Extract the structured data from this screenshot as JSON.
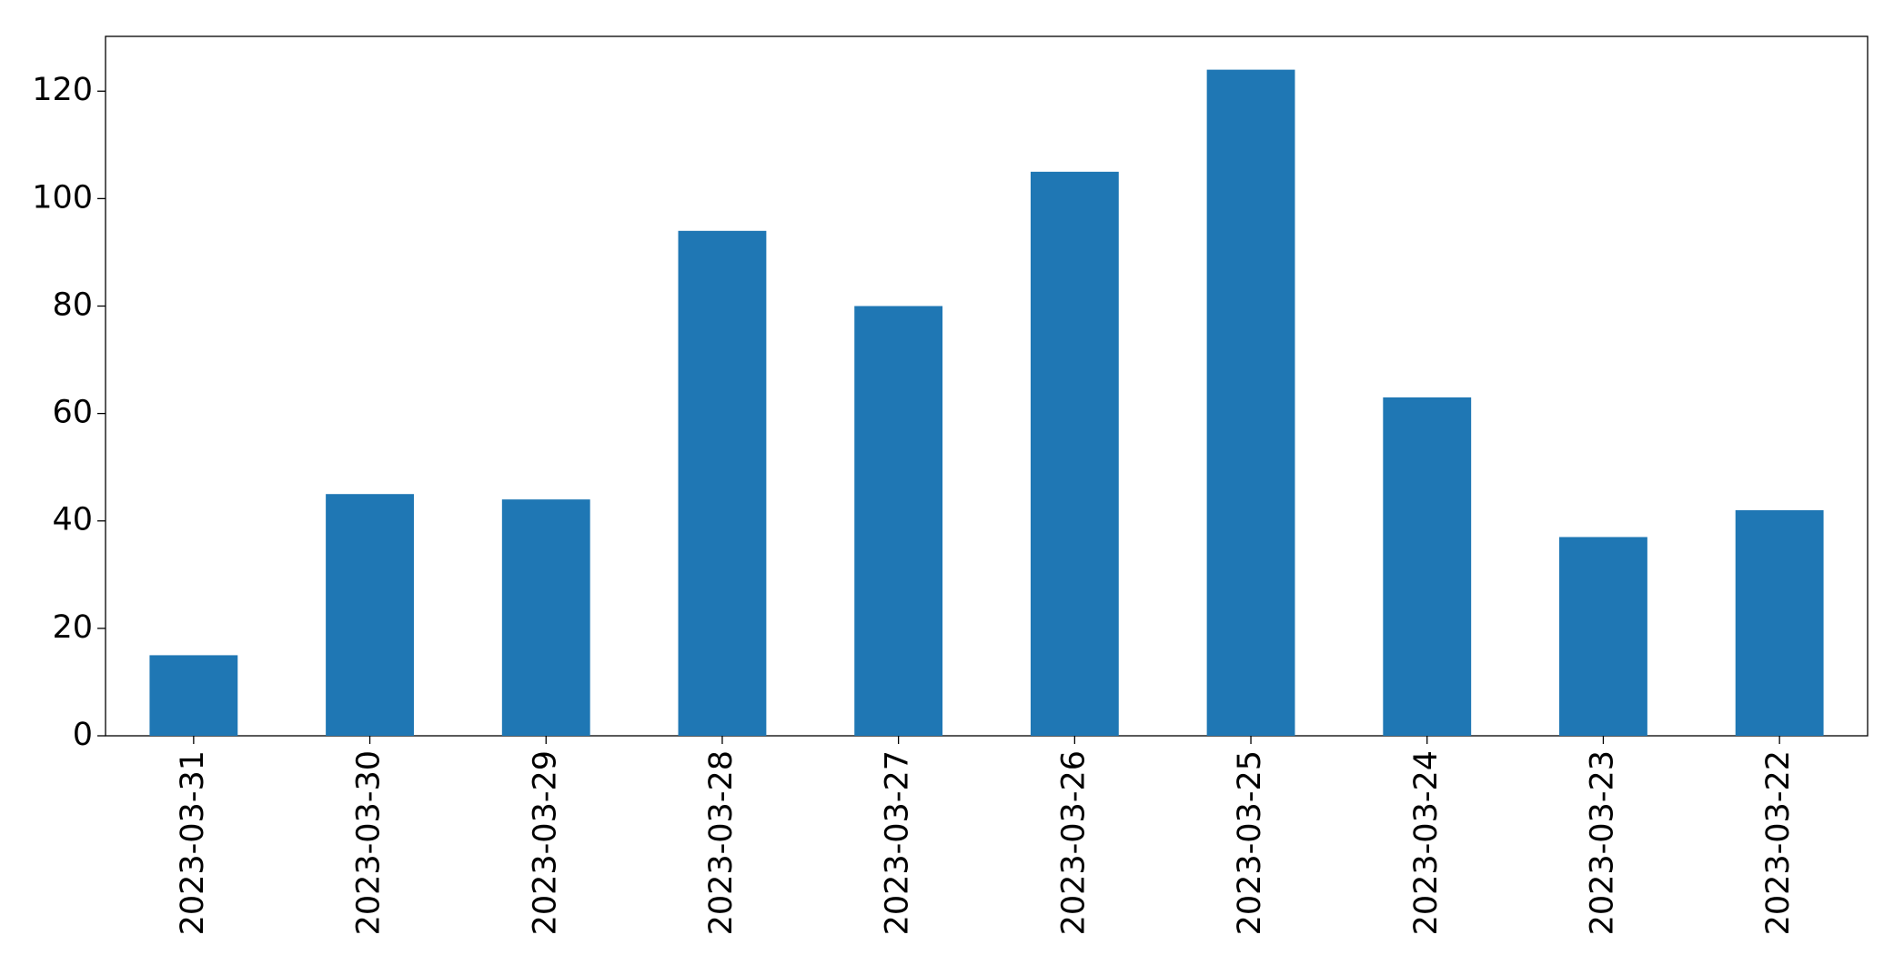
{
  "chart_data": {
    "type": "bar",
    "categories": [
      "2023-03-31",
      "2023-03-30",
      "2023-03-29",
      "2023-03-28",
      "2023-03-27",
      "2023-03-26",
      "2023-03-25",
      "2023-03-24",
      "2023-03-23",
      "2023-03-22"
    ],
    "values": [
      15,
      45,
      44,
      94,
      80,
      105,
      124,
      63,
      37,
      42
    ],
    "color": "#1f77b4",
    "ylim": [
      0,
      130.2
    ],
    "yticks": [
      0,
      20,
      40,
      60,
      80,
      100,
      120
    ],
    "grid": false
  }
}
